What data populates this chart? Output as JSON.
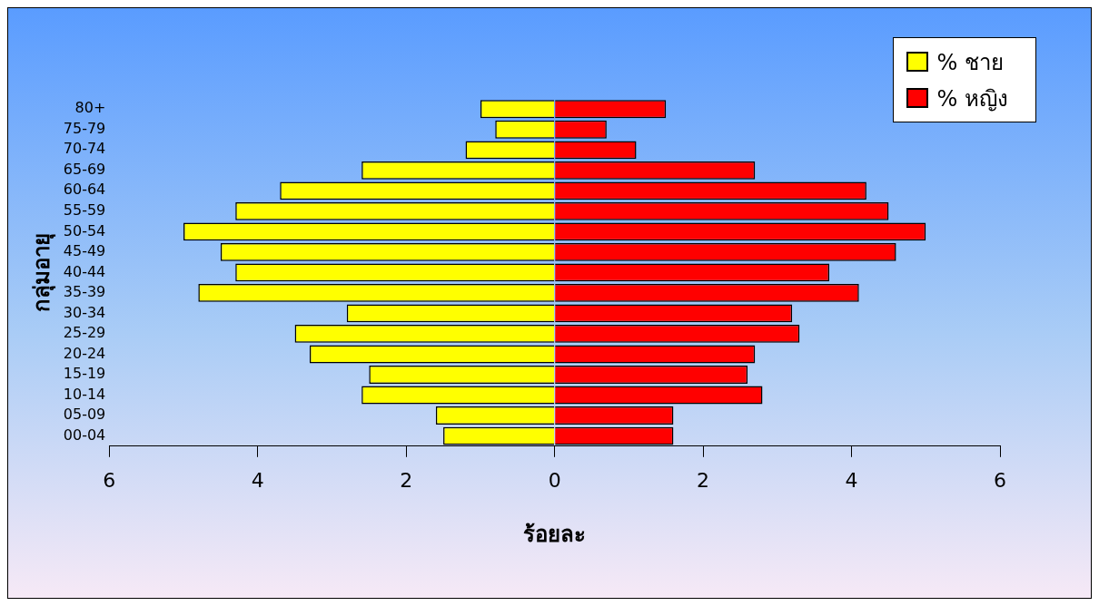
{
  "chart_data": {
    "type": "bar",
    "orientation": "horizontal",
    "stacked": true,
    "xlabel": "ร้อยละ",
    "ylabel": "กลุ่มอายุ",
    "categories": [
      "80+",
      "75-79",
      "70-74",
      "65-69",
      "60-64",
      "55-59",
      "50-54",
      "45-49",
      "40-44",
      "35-39",
      "30-34",
      "25-29",
      "20-24",
      "15-19",
      "10-14",
      "05-09",
      "00-04"
    ],
    "series": [
      {
        "name": "% ชาย",
        "color": "#ffff00",
        "values": [
          -1.0,
          -0.8,
          -1.2,
          -2.6,
          -3.7,
          -4.3,
          -5.0,
          -4.5,
          -4.3,
          -4.8,
          -2.8,
          -3.5,
          -3.3,
          -2.5,
          -2.6,
          -1.6,
          -1.5
        ]
      },
      {
        "name": "% หญิง",
        "color": "#ff0000",
        "values": [
          1.5,
          0.7,
          1.1,
          2.7,
          4.2,
          4.5,
          5.0,
          4.6,
          3.7,
          4.1,
          3.2,
          3.3,
          2.7,
          2.6,
          2.8,
          1.6,
          1.6
        ]
      }
    ],
    "xlim": [
      -6,
      6
    ],
    "xticks": [
      {
        "value": -6,
        "label": "6"
      },
      {
        "value": -4,
        "label": "4"
      },
      {
        "value": -2,
        "label": "2"
      },
      0,
      2,
      4,
      6
    ],
    "grid": false,
    "legend": "top right"
  }
}
